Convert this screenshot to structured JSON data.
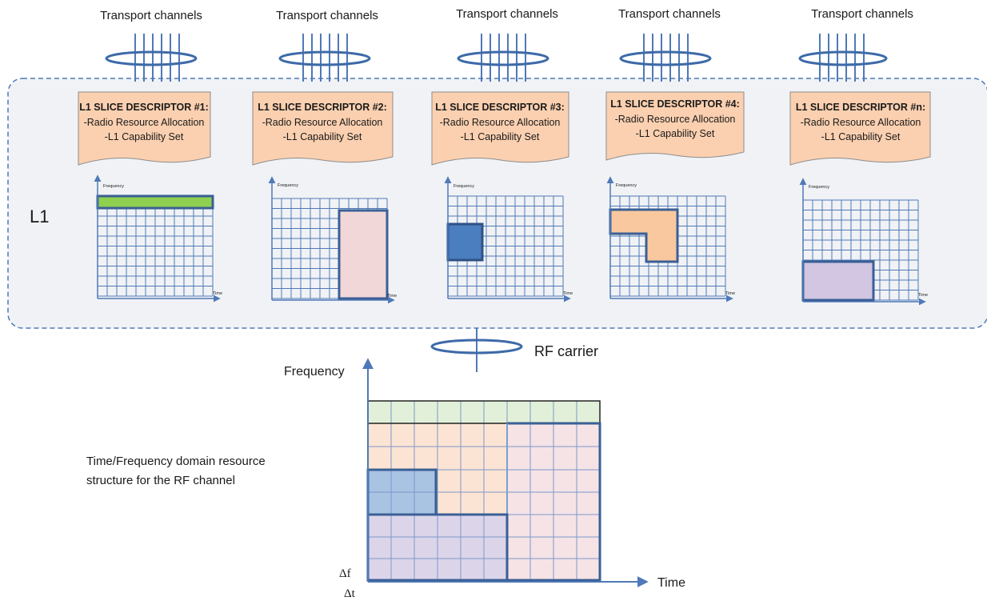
{
  "l1_label": "L1",
  "slices": [
    {
      "transport_label": "Transport channels",
      "descriptor_title": "L1 SLICE DESCRIPTOR #1:",
      "descriptor_line1": "-Radio Resource Allocation",
      "descriptor_line2": "-L1 Capability Set",
      "axis_y": "Frequency",
      "axis_x": "Time",
      "allocation_color": "#8fd050"
    },
    {
      "transport_label": "Transport channels",
      "descriptor_title": "L1 SLICE DESCRIPTOR #2:",
      "descriptor_line1": "-Radio Resource Allocation",
      "descriptor_line2": "-L1 Capability Set",
      "axis_y": "Frequency",
      "axis_x": "Time",
      "allocation_color": "#f2d7d9"
    },
    {
      "transport_label": "Transport channels",
      "descriptor_title": "L1 SLICE DESCRIPTOR #3:",
      "descriptor_line1": "-Radio Resource Allocation",
      "descriptor_line2": "-L1 Capability Set",
      "axis_y": "Frequency",
      "axis_x": "Time",
      "allocation_color": "#4a7ebf"
    },
    {
      "transport_label": "Transport channels",
      "descriptor_title": "L1 SLICE DESCRIPTOR #4:",
      "descriptor_line1": "-Radio Resource Allocation",
      "descriptor_line2": "-L1 Capability Set",
      "axis_y": "Frequency",
      "axis_x": "Time",
      "allocation_color": "#fac89e"
    },
    {
      "transport_label": "Transport channels",
      "descriptor_title": "L1 SLICE DESCRIPTOR #n:",
      "descriptor_line1": "-Radio Resource Allocation",
      "descriptor_line2": "-L1 Capability Set",
      "axis_y": "Frequency",
      "axis_x": "Time",
      "allocation_color": "#d2c6e2"
    }
  ],
  "rf_carrier_label": "RF carrier",
  "resource_grid": {
    "axis_y": "Frequency",
    "axis_x": "Time",
    "description_line1": "Time/Frequency domain resource",
    "description_line2": "structure for the RF channel",
    "delta_f": "Δf",
    "delta_t": "Δt"
  },
  "colors": {
    "grid_line": "#4f79b8",
    "allocation_border": "#3a5f95",
    "l1_panel_fill": "#f0f2f5",
    "l1_panel_border": "#4f79b8",
    "descriptor_fill": "#fbd0b0"
  }
}
